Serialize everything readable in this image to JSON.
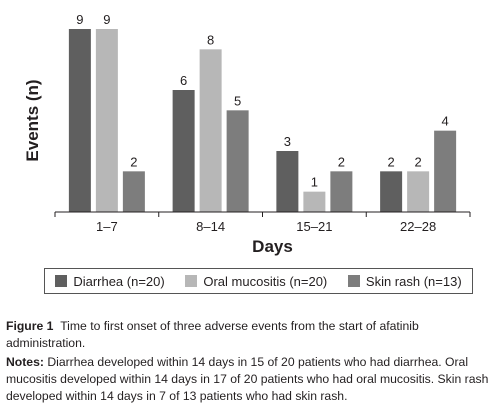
{
  "chart_data": {
    "type": "bar",
    "categories": [
      "1–7",
      "8–14",
      "15–21",
      "22–28"
    ],
    "series": [
      {
        "name": "Diarrhea (n=20)",
        "values": [
          9,
          6,
          3,
          2
        ],
        "color": "#5f5f5f"
      },
      {
        "name": "Oral mucositis (n=20)",
        "values": [
          9,
          8,
          1,
          2
        ],
        "color": "#b7b7b7"
      },
      {
        "name": "Skin rash (n=13)",
        "values": [
          2,
          5,
          2,
          4
        ],
        "color": "#7d7d7d"
      }
    ],
    "title": "",
    "xlabel": "Days",
    "ylabel": "Events (n)",
    "ylim": [
      0,
      9
    ],
    "grid": false,
    "legend_position": "bottom",
    "data_labels": true
  },
  "caption": {
    "figure_label": "Figure 1",
    "figure_text": "Time to first onset of three adverse events from the start of afatinib administration.",
    "notes_label": "Notes:",
    "notes_text": "Diarrhea developed within 14 days in 15 of 20 patients who had diarrhea. Oral mucositis developed within 14 days in 17 of 20 patients who had oral mucositis. Skin rash developed within 14 days in 7 of 13 patients who had skin rash."
  }
}
